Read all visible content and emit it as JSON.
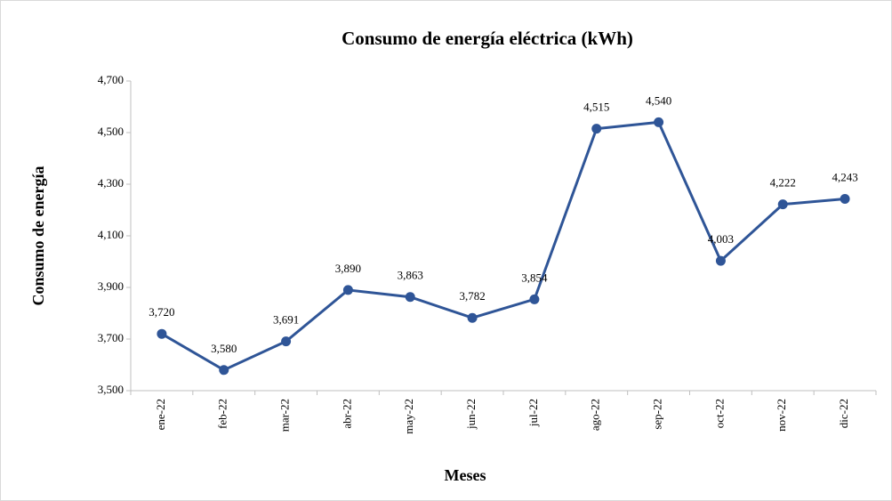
{
  "chart_data": {
    "type": "line",
    "title": "Consumo de energía eléctrica (kWh)",
    "x_label": "Meses",
    "y_label": "Consumo de energía",
    "categories": [
      "ene-22",
      "feb-22",
      "mar-22",
      "abr-22",
      "may-22",
      "jun-22",
      "jul-22",
      "ago-22",
      "sep-22",
      "oct-22",
      "nov-22",
      "dic-22"
    ],
    "series": [
      {
        "name": "Consumo de energía",
        "color": "#2f5597",
        "values": [
          3720,
          3580,
          3691,
          3890,
          3863,
          3782,
          3854,
          4515,
          4540,
          4003,
          4222,
          4243
        ],
        "value_labels": [
          "3,720",
          "3,580",
          "3,691",
          "3,890",
          "3,863",
          "3,782",
          "3,854",
          "4,515",
          "4,540",
          "4,003",
          "4,222",
          "4,243"
        ]
      }
    ],
    "ylim": [
      3500,
      4700
    ],
    "yticks": [
      {
        "value": 3500,
        "label": "3,500"
      },
      {
        "value": 3700,
        "label": "3,700"
      },
      {
        "value": 3900,
        "label": "3,900"
      },
      {
        "value": 4100,
        "label": "4,100"
      },
      {
        "value": 4300,
        "label": "4,300"
      },
      {
        "value": 4500,
        "label": "4,500"
      },
      {
        "value": 4700,
        "label": "4,700"
      }
    ],
    "grid": false
  }
}
